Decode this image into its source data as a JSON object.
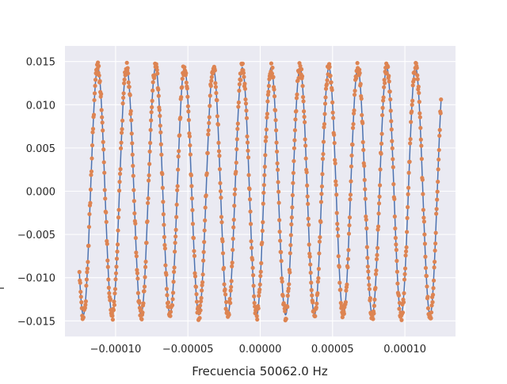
{
  "chart_data": {
    "type": "scatter",
    "title": "",
    "xlabel": "Frecuencia 50062.0 Hz",
    "ylabel": "",
    "xlim": [
      -0.000135,
      0.000135
    ],
    "ylim": [
      -0.0168,
      0.0168
    ],
    "grid": true,
    "x_ticks": [
      -0.0001,
      -5e-05,
      0.0,
      5e-05,
      0.0001
    ],
    "x_tick_labels": [
      "−0.00010",
      "−0.00005",
      "0.00000",
      "0.00005",
      "0.00010"
    ],
    "y_ticks": [
      -0.015,
      -0.01,
      -0.005,
      0.0,
      0.005,
      0.01,
      0.015
    ],
    "y_tick_labels": [
      "−0.015",
      "−0.010",
      "−0.005",
      "0.000",
      "0.005",
      "0.010",
      "0.015"
    ],
    "series": [
      {
        "kind": "line",
        "color": "#4c72b0",
        "amplitude": 0.0143,
        "frequency_hz": 50062.0,
        "phase_rad": -0.8,
        "x_start": -0.000125,
        "x_end": 0.000125
      },
      {
        "kind": "points",
        "color": "#dd8452",
        "sample_count": 900,
        "x_start": -0.000125,
        "x_end": 0.000125,
        "noise_amplitude": 0.0007
      }
    ]
  },
  "colors": {
    "plot_background": "#eaeaf2",
    "grid": "#ffffff",
    "text": "#262626"
  }
}
